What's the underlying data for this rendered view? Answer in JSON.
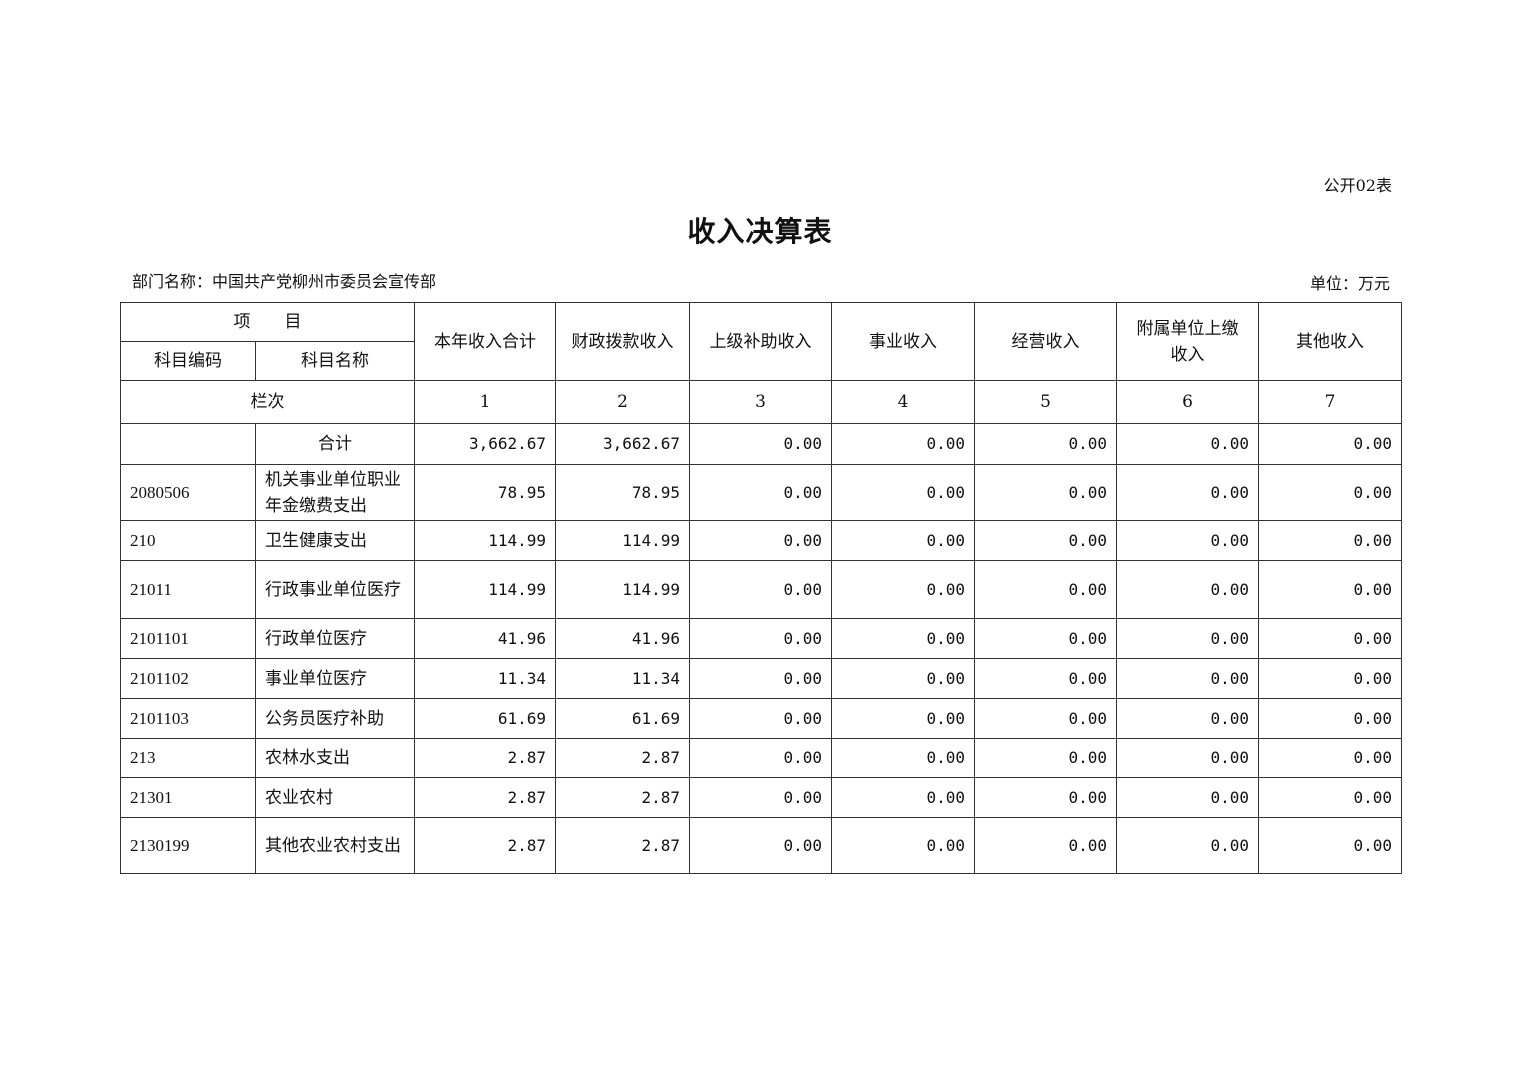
{
  "form_no": "公开02表",
  "title": "收入决算表",
  "department": "部门名称：中国共产党柳州市委员会宣传部",
  "unit": "单位：万元",
  "header": {
    "item": "项　　目",
    "code": "科目编码",
    "name": "科目名称",
    "columns": [
      "本年收入合计",
      "财政拨款收入",
      "上级补助收入",
      "事业收入",
      "经营收入",
      "附属单位上缴收入",
      "其他收入"
    ],
    "row_index_label": "栏次",
    "row_index": [
      "1",
      "2",
      "3",
      "4",
      "5",
      "6",
      "7"
    ]
  },
  "total": {
    "label": "合计",
    "values": [
      "3,662.67",
      "3,662.67",
      "0.00",
      "0.00",
      "0.00",
      "0.00",
      "0.00"
    ]
  },
  "rows": [
    {
      "code": "2080506",
      "name": "机关事业单位职业年金缴费支出",
      "values": [
        "78.95",
        "78.95",
        "0.00",
        "0.00",
        "0.00",
        "0.00",
        "0.00"
      ]
    },
    {
      "code": "210",
      "name": "卫生健康支出",
      "values": [
        "114.99",
        "114.99",
        "0.00",
        "0.00",
        "0.00",
        "0.00",
        "0.00"
      ]
    },
    {
      "code": "21011",
      "name": "行政事业单位医疗",
      "values": [
        "114.99",
        "114.99",
        "0.00",
        "0.00",
        "0.00",
        "0.00",
        "0.00"
      ]
    },
    {
      "code": "2101101",
      "name": "行政单位医疗",
      "values": [
        "41.96",
        "41.96",
        "0.00",
        "0.00",
        "0.00",
        "0.00",
        "0.00"
      ]
    },
    {
      "code": "2101102",
      "name": "事业单位医疗",
      "values": [
        "11.34",
        "11.34",
        "0.00",
        "0.00",
        "0.00",
        "0.00",
        "0.00"
      ]
    },
    {
      "code": "2101103",
      "name": "公务员医疗补助",
      "values": [
        "61.69",
        "61.69",
        "0.00",
        "0.00",
        "0.00",
        "0.00",
        "0.00"
      ]
    },
    {
      "code": "213",
      "name": "农林水支出",
      "values": [
        "2.87",
        "2.87",
        "0.00",
        "0.00",
        "0.00",
        "0.00",
        "0.00"
      ]
    },
    {
      "code": "21301",
      "name": "农业农村",
      "values": [
        "2.87",
        "2.87",
        "0.00",
        "0.00",
        "0.00",
        "0.00",
        "0.00"
      ]
    },
    {
      "code": "2130199",
      "name": "其他农业农村支出",
      "values": [
        "2.87",
        "2.87",
        "0.00",
        "0.00",
        "0.00",
        "0.00",
        "0.00"
      ]
    }
  ]
}
